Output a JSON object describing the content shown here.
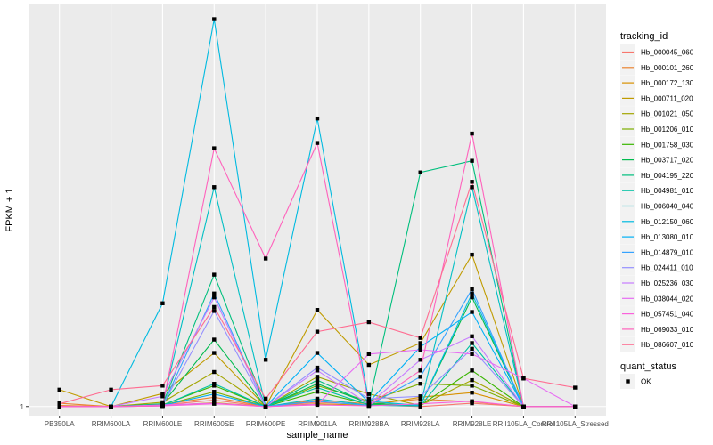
{
  "chart_data": {
    "type": "line",
    "title": "",
    "xlabel": "sample_name",
    "ylabel": "FPKM + 1",
    "y_scale": "log10",
    "ylim": [
      0.85,
      1300
    ],
    "y_ticks": [
      {
        "value": 1,
        "label": "1"
      }
    ],
    "grid": true,
    "legend_position": "right",
    "categories": [
      "PB350LA",
      "RRIM600LA",
      "RRIM600LE",
      "RRIM600SE",
      "RRIM600PE",
      "RRIM901LA",
      "RRIM928BA",
      "RRIM928LA",
      "RRIM928LE",
      "RRII105LA_Control",
      "RRII105LA_Stressed"
    ],
    "color_legend": {
      "title": "tracking_id"
    },
    "shape_legend": {
      "title": "quant_status",
      "entries": [
        {
          "label": "OK",
          "shape": "square",
          "color": "#000000"
        }
      ]
    },
    "series": [
      {
        "name": "Hb_000045_060",
        "color": "#F8766D",
        "values": [
          1.02,
          1,
          1.03,
          1.12,
          1,
          1.08,
          1.03,
          1,
          1.06,
          1,
          1
        ]
      },
      {
        "name": "Hb_000101_260",
        "color": "#EA8331",
        "values": [
          1.06,
          1,
          1.04,
          1.18,
          1,
          1.12,
          1.05,
          1.14,
          1.09,
          1,
          1
        ]
      },
      {
        "name": "Hb_000172_130",
        "color": "#D89000",
        "values": [
          1.01,
          1,
          1.02,
          1.07,
          1,
          1.05,
          1.02,
          1.18,
          1.28,
          1,
          1
        ]
      },
      {
        "name": "Hb_000711_020",
        "color": "#C09B00",
        "values": [
          1.35,
          1,
          1.26,
          2.6,
          1,
          5.6,
          2.1,
          3.1,
          15,
          1,
          1
        ]
      },
      {
        "name": "Hb_001021_050",
        "color": "#A3A500",
        "values": [
          1,
          1,
          1.08,
          1.85,
          1,
          1.7,
          1.25,
          1.02,
          1.6,
          1,
          1
        ]
      },
      {
        "name": "Hb_001206_010",
        "color": "#7CAE00",
        "values": [
          1,
          1,
          1.02,
          1.3,
          1,
          1.45,
          1.1,
          1.5,
          1.45,
          1,
          1
        ]
      },
      {
        "name": "Hb_001758_030",
        "color": "#39B600",
        "values": [
          1,
          1,
          1.03,
          1.45,
          1,
          1.3,
          1.04,
          1.02,
          1.9,
          1,
          1
        ]
      },
      {
        "name": "Hb_003717_020",
        "color": "#00BB4E",
        "values": [
          1,
          1,
          1.05,
          3.3,
          1,
          1.5,
          1.06,
          1.02,
          7.0,
          1,
          1
        ]
      },
      {
        "name": "Hb_004195_220",
        "color": "#00BF7D",
        "values": [
          1,
          1,
          1.04,
          10.5,
          1,
          1.6,
          1.05,
          65,
          80,
          1,
          1
        ]
      },
      {
        "name": "Hb_004981_010",
        "color": "#00C1A3",
        "values": [
          1,
          1,
          1.02,
          1.5,
          1,
          1.4,
          1.03,
          1.01,
          3.1,
          1,
          1
        ]
      },
      {
        "name": "Hb_006040_040",
        "color": "#00BFC4",
        "values": [
          1,
          1,
          1.03,
          50,
          1,
          1.15,
          1.02,
          1.01,
          50,
          1,
          1
        ]
      },
      {
        "name": "Hb_012150_060",
        "color": "#00BAE0",
        "values": [
          1,
          1,
          6.3,
          1000,
          2.3,
          170,
          1.1,
          1.02,
          7.5,
          1,
          1
        ]
      },
      {
        "name": "Hb_013080_010",
        "color": "#00B0F6",
        "values": [
          1,
          1,
          1.02,
          1.25,
          1,
          2.6,
          1.08,
          2.9,
          5.4,
          1,
          1
        ]
      },
      {
        "name": "Hb_014879_010",
        "color": "#35A2FF",
        "values": [
          1,
          1,
          1.01,
          7.5,
          1,
          1.1,
          1.02,
          1.7,
          8.1,
          1,
          1
        ]
      },
      {
        "name": "Hb_024411_010",
        "color": "#9590FF",
        "values": [
          1,
          1,
          1.02,
          5.5,
          1,
          2.0,
          1.15,
          1.2,
          2.8,
          1,
          1
        ]
      },
      {
        "name": "Hb_025236_030",
        "color": "#C77CFF",
        "values": [
          1,
          1,
          1.2,
          7.0,
          1,
          1.9,
          1.04,
          2.3,
          3.5,
          1,
          1
        ]
      },
      {
        "name": "Hb_038044_020",
        "color": "#E76BF3",
        "values": [
          1,
          1,
          1.03,
          1.06,
          1,
          1.04,
          2.55,
          2.75,
          2.55,
          1.65,
          1
        ]
      },
      {
        "name": "Hb_057451_040",
        "color": "#FA62DB",
        "values": [
          1,
          1,
          1.01,
          1.05,
          1,
          1.03,
          1.01,
          1.05,
          1.1,
          1,
          1
        ]
      },
      {
        "name": "Hb_069033_010",
        "color": "#FF62BC",
        "values": [
          1,
          1,
          1.01,
          100,
          14,
          110,
          1.02,
          1.9,
          130,
          1,
          1
        ]
      },
      {
        "name": "Hb_086607_010",
        "color": "#FF6C91",
        "values": [
          1.05,
          1.35,
          1.45,
          5.9,
          1.15,
          3.8,
          4.5,
          3.4,
          55,
          1.65,
          1.4
        ]
      }
    ]
  }
}
